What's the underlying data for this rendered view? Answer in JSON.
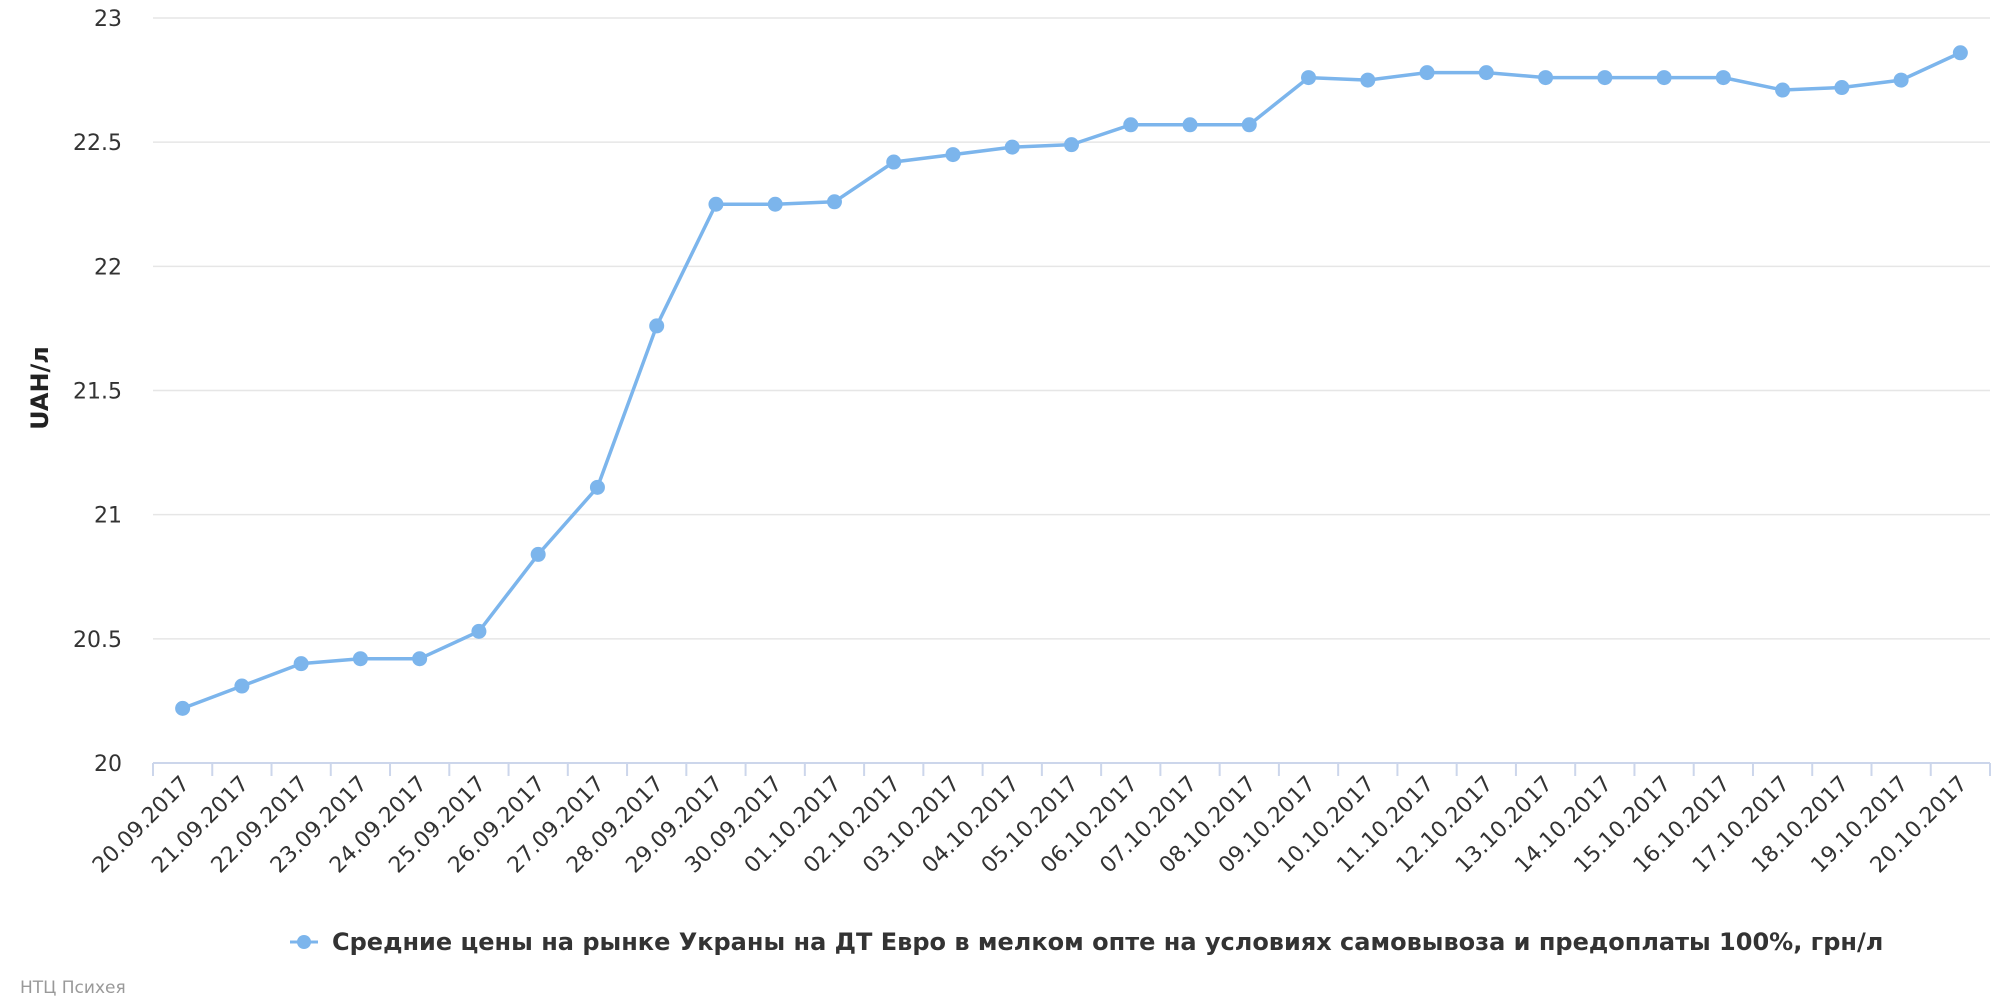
{
  "chart_data": {
    "type": "line",
    "title": "",
    "xlabel": "",
    "ylabel": "UAH/л",
    "ylim": [
      20,
      23
    ],
    "yticks": [
      "20",
      "20.5",
      "21",
      "21.5",
      "22",
      "22.5",
      "23"
    ],
    "grid": true,
    "legend_position": "bottom-center",
    "color": "#7cb5ec",
    "categories": [
      "20.09.2017",
      "21.09.2017",
      "22.09.2017",
      "23.09.2017",
      "24.09.2017",
      "25.09.2017",
      "26.09.2017",
      "27.09.2017",
      "28.09.2017",
      "29.09.2017",
      "30.09.2017",
      "01.10.2017",
      "02.10.2017",
      "03.10.2017",
      "04.10.2017",
      "05.10.2017",
      "06.10.2017",
      "07.10.2017",
      "08.10.2017",
      "09.10.2017",
      "10.10.2017",
      "11.10.2017",
      "12.10.2017",
      "13.10.2017",
      "14.10.2017",
      "15.10.2017",
      "16.10.2017",
      "17.10.2017",
      "18.10.2017",
      "19.10.2017",
      "20.10.2017"
    ],
    "series": [
      {
        "name": "Средние цены на рынке Украны на ДТ Евро в мелком опте на условиях самовывоза и предоплаты 100%, грн/л",
        "values": [
          20.22,
          20.31,
          20.4,
          20.42,
          20.42,
          20.53,
          20.84,
          21.11,
          21.76,
          22.25,
          22.25,
          22.26,
          22.42,
          22.45,
          22.48,
          22.49,
          22.57,
          22.57,
          22.57,
          22.76,
          22.75,
          22.78,
          22.78,
          22.76,
          22.76,
          22.76,
          22.76,
          22.71,
          22.72,
          22.75,
          22.86
        ]
      }
    ]
  },
  "credit": "НТЦ Психея"
}
